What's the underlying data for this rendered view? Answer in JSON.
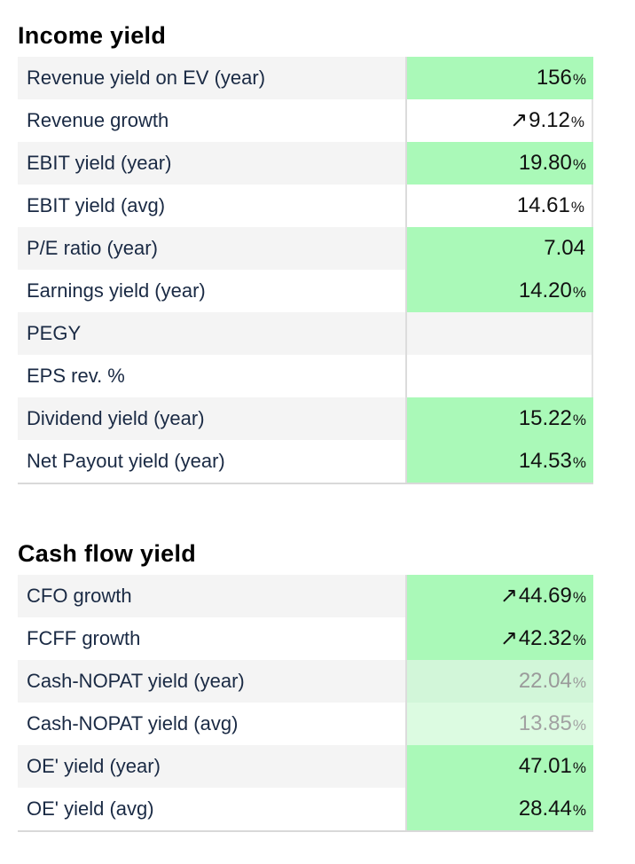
{
  "income_section": {
    "title": "Income yield",
    "rows": [
      {
        "label": "Revenue yield on EV (year)",
        "arrow": "",
        "value": "156",
        "unit": "%"
      },
      {
        "label": "Revenue growth",
        "arrow": "↗",
        "value": "9.12",
        "unit": "%"
      },
      {
        "label": "EBIT yield (year)",
        "arrow": "",
        "value": "19.80",
        "unit": "%"
      },
      {
        "label": "EBIT yield (avg)",
        "arrow": "",
        "value": "14.61",
        "unit": "%"
      },
      {
        "label": "P/E ratio (year)",
        "arrow": "",
        "value": "7.04",
        "unit": ""
      },
      {
        "label": "Earnings yield (year)",
        "arrow": "",
        "value": "14.20",
        "unit": "%"
      },
      {
        "label": "PEGY",
        "arrow": "",
        "value": "",
        "unit": ""
      },
      {
        "label": "EPS rev. %",
        "arrow": "",
        "value": "",
        "unit": ""
      },
      {
        "label": "Dividend yield (year)",
        "arrow": "",
        "value": "15.22",
        "unit": "%"
      },
      {
        "label": "Net Payout yield (year)",
        "arrow": "",
        "value": "14.53",
        "unit": "%"
      }
    ]
  },
  "cash_section": {
    "title": "Cash flow yield",
    "rows": [
      {
        "label": "CFO growth",
        "arrow": "↗",
        "value": "44.69",
        "unit": "%"
      },
      {
        "label": "FCFF growth",
        "arrow": "↗",
        "value": "42.32",
        "unit": "%"
      },
      {
        "label": "Cash-NOPAT yield (year)",
        "arrow": "",
        "value": "22.04",
        "unit": "%"
      },
      {
        "label": "Cash-NOPAT yield (avg)",
        "arrow": "",
        "value": "13.85",
        "unit": "%"
      },
      {
        "label": "OE' yield (year)",
        "arrow": "",
        "value": "47.01",
        "unit": "%"
      },
      {
        "label": "OE' yield (avg)",
        "arrow": "",
        "value": "28.44",
        "unit": "%"
      }
    ]
  },
  "colors": {
    "strong_green": "#aaf9b8",
    "pale_green": "#d2f6d9",
    "paler_green": "#dcfbe1",
    "row_stripe": "#f4f4f4",
    "text": "#1a2a44"
  }
}
